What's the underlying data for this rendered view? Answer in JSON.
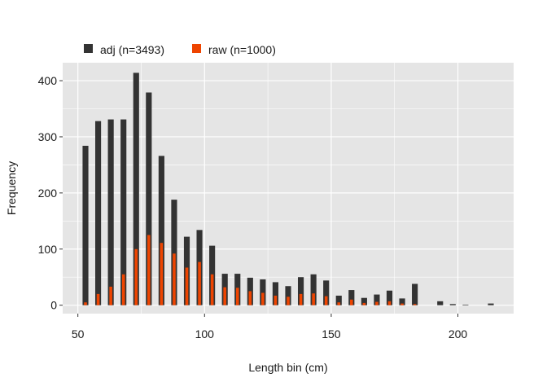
{
  "chart_data": {
    "type": "bar",
    "xlabel": "Length bin (cm)",
    "ylabel": "Frequency",
    "xlim": [
      44,
      222
    ],
    "ylim": [
      -15,
      432
    ],
    "xticks": [
      50,
      100,
      150,
      200
    ],
    "yticks": [
      0,
      100,
      200,
      300,
      400
    ],
    "grid": true,
    "legend_position": "top-left",
    "colors": {
      "panel": "#e5e5e5",
      "grid": "#ffffff",
      "adj": "#333333",
      "raw": "#ee4400"
    },
    "x": [
      53,
      58,
      63,
      68,
      73,
      78,
      83,
      88,
      93,
      98,
      103,
      108,
      113,
      118,
      123,
      128,
      133,
      138,
      143,
      148,
      153,
      158,
      163,
      168,
      173,
      178,
      183,
      188,
      193,
      198,
      203,
      208,
      213
    ],
    "series": [
      {
        "name": "adj (n=3493)",
        "key": "adj",
        "values": [
          284,
          328,
          331,
          331,
          414,
          379,
          266,
          188,
          122,
          134,
          106,
          56,
          56,
          49,
          46,
          41,
          34,
          50,
          55,
          44,
          17,
          27,
          13,
          19,
          26,
          12,
          38,
          0,
          7,
          2,
          1,
          0,
          3
        ]
      },
      {
        "name": "raw (n=1000)",
        "key": "raw",
        "values": [
          5,
          20,
          33,
          55,
          100,
          125,
          111,
          92,
          67,
          77,
          55,
          32,
          31,
          25,
          22,
          17,
          15,
          20,
          21,
          16,
          5,
          10,
          4,
          6,
          7,
          3,
          2,
          0,
          0,
          0,
          0,
          0,
          0
        ]
      }
    ]
  }
}
